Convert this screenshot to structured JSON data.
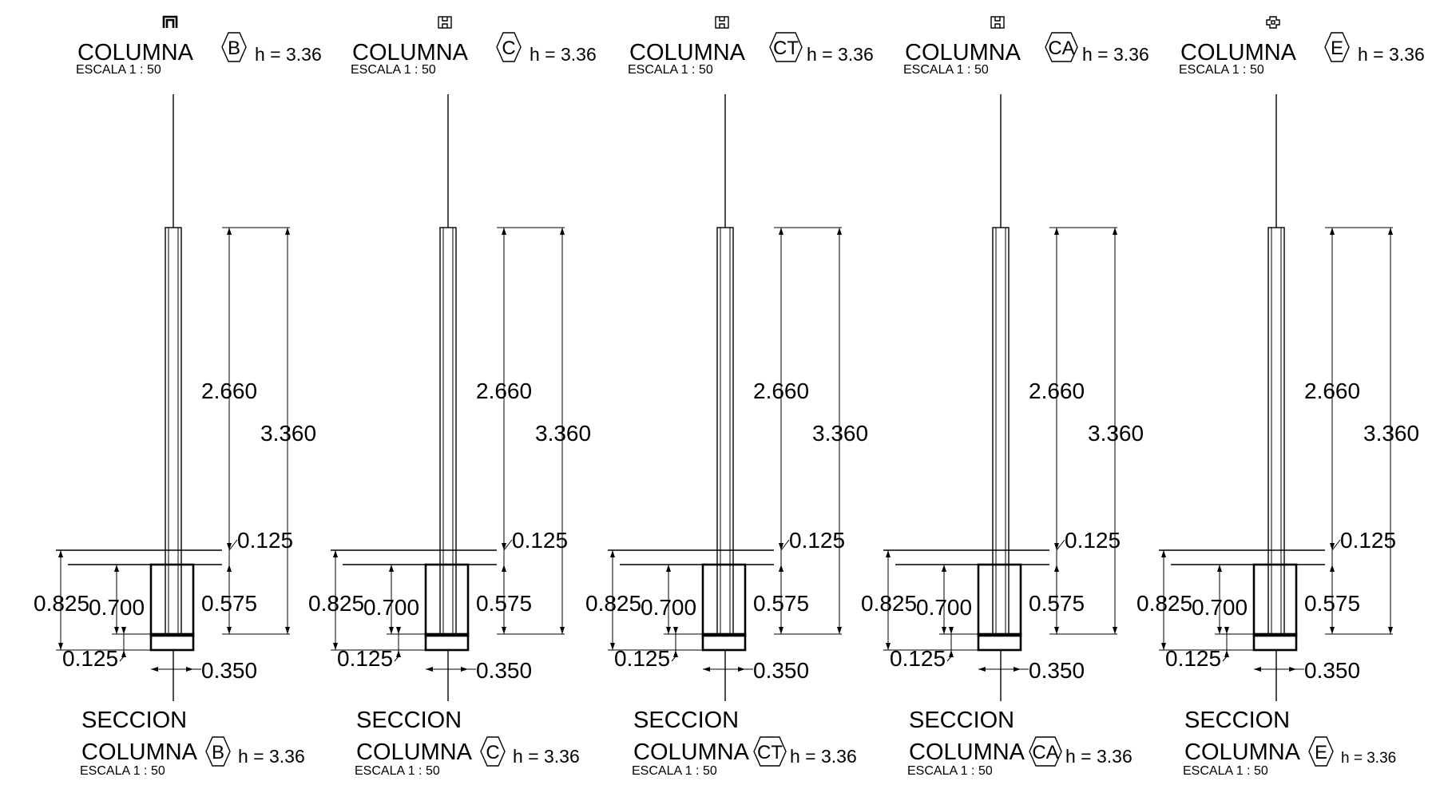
{
  "panels": [
    {
      "top": {
        "title": "COLUMNA",
        "scale": "ESCALA  1 : 50",
        "tag": "B",
        "h": "h = 3.36",
        "icon": "profile-l-icon"
      },
      "dims": {
        "d2660": "2.660",
        "d3360": "3.360",
        "d0125t": "0.125",
        "d0825": "0.825",
        "d0700": "0.700",
        "d0575": "0.575",
        "d0125b": "0.125",
        "d0350": "0.350"
      },
      "bottom": {
        "line1": "SECCION",
        "line2": "COLUMNA",
        "scale": "ESCALA  1 : 50",
        "tag": "B",
        "h": "h = 3.36"
      }
    },
    {
      "top": {
        "title": "COLUMNA",
        "scale": "ESCALA  1 : 50",
        "tag": "C",
        "h": "h = 3.36",
        "icon": "profile-h-icon"
      },
      "dims": {
        "d2660": "2.660",
        "d3360": "3.360",
        "d0125t": "0.125",
        "d0825": "0.825",
        "d0700": "0.700",
        "d0575": "0.575",
        "d0125b": "0.125",
        "d0350": "0.350"
      },
      "bottom": {
        "line1": "SECCION",
        "line2": "COLUMNA",
        "scale": "ESCALA  1 : 50",
        "tag": "C",
        "h": "h = 3.36"
      }
    },
    {
      "top": {
        "title": "COLUMNA",
        "scale": "ESCALA  1 : 50",
        "tag": "CT",
        "h": "h = 3.36",
        "icon": "profile-h-icon"
      },
      "dims": {
        "d2660": "2.660",
        "d3360": "3.360",
        "d0125t": "0.125",
        "d0825": "0.825",
        "d0700": "0.700",
        "d0575": "0.575",
        "d0125b": "0.125",
        "d0350": "0.350"
      },
      "bottom": {
        "line1": "SECCION",
        "line2": "COLUMNA",
        "scale": "ESCALA  1 : 50",
        "tag": "CT",
        "h": "h = 3.36"
      }
    },
    {
      "top": {
        "title": "COLUMNA",
        "scale": "ESCALA  1 : 50",
        "tag": "CA",
        "h": "h = 3.36",
        "icon": "profile-h-icon"
      },
      "dims": {
        "d2660": "2.660",
        "d3360": "3.360",
        "d0125t": "0.125",
        "d0825": "0.825",
        "d0700": "0.700",
        "d0575": "0.575",
        "d0125b": "0.125",
        "d0350": "0.350"
      },
      "bottom": {
        "line1": "SECCION",
        "line2": "COLUMNA",
        "scale": "ESCALA  1 : 50",
        "tag": "CA",
        "h": "h = 3.36"
      }
    },
    {
      "top": {
        "title": "COLUMNA",
        "scale": "ESCALA  1 : 50",
        "tag": "E",
        "h": "h = 3.36",
        "icon": "profile-cross-icon"
      },
      "dims": {
        "d2660": "2.660",
        "d3360": "3.360",
        "d0125t": "0.125",
        "d0825": "0.825",
        "d0700": "0.700",
        "d0575": "0.575",
        "d0125b": "0.125",
        "d0350": "0.350"
      },
      "bottom": {
        "line1": "SECCION",
        "line2": "COLUMNA",
        "scale": "ESCALA  1 : 50",
        "tag": "E",
        "h": "h = 3.36"
      }
    }
  ]
}
